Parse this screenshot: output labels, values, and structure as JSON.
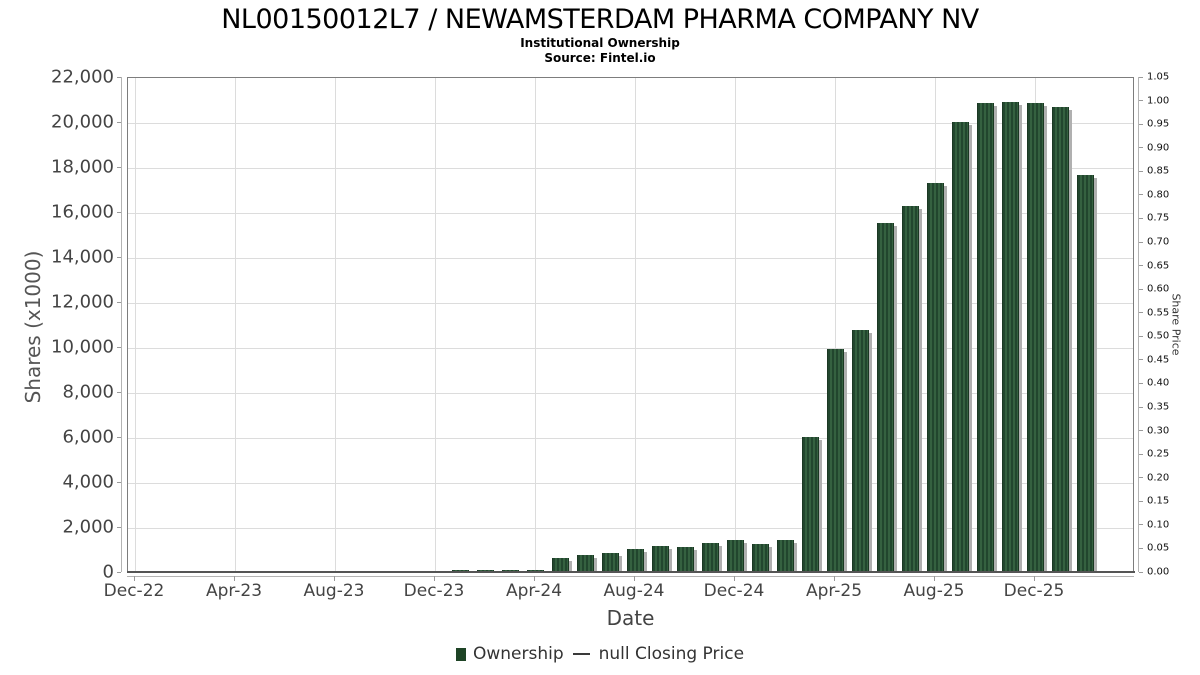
{
  "header": {
    "title": "NL00150012L7 / NEWAMSTERDAM PHARMA COMPANY NV",
    "subtitle": "Institutional Ownership",
    "source": "Source: Fintel.io"
  },
  "chart_data": {
    "type": "bar",
    "title": "NL00150012L7 / NEWAMSTERDAM PHARMA COMPANY NV",
    "subtitle": "Institutional Ownership",
    "source": "Source: Fintel.io",
    "xlabel": "Date",
    "ylabel_left": "Shares (x1000)",
    "ylabel_right": "Share Price",
    "values_unit": "thousands of shares",
    "ylim_left": [
      0,
      22000
    ],
    "ylim_right": [
      0,
      1.05
    ],
    "grid": true,
    "legend_position": "bottom",
    "categories": [
      "Dec-22",
      "Jan-23",
      "Feb-23",
      "Mar-23",
      "Apr-23",
      "May-23",
      "Jun-23",
      "Jul-23",
      "Aug-23",
      "Sep-23",
      "Oct-23",
      "Nov-23",
      "Dec-23",
      "Jan-24",
      "Feb-24",
      "Mar-24",
      "Apr-24",
      "May-24",
      "Jun-24",
      "Jul-24",
      "Aug-24",
      "Sep-24",
      "Oct-24",
      "Nov-24",
      "Dec-24",
      "Jan-25",
      "Feb-25",
      "Mar-25",
      "Apr-25",
      "May-25",
      "Jun-25",
      "Jul-25",
      "Aug-25",
      "Sep-25",
      "Oct-25",
      "Nov-25",
      "Dec-25",
      "Jan-26",
      "Feb-26"
    ],
    "series": [
      {
        "name": "Ownership",
        "values": [
          0,
          0,
          20,
          25,
          30,
          35,
          40,
          45,
          55,
          60,
          70,
          80,
          110,
          115,
          120,
          130,
          140,
          660,
          810,
          900,
          1060,
          1190,
          1170,
          1340,
          1450,
          1310,
          1480,
          6060,
          9950,
          10800,
          15550,
          16300,
          17320,
          20030,
          20900,
          20950,
          20900,
          20720,
          17700
        ]
      }
    ],
    "price_series": {
      "name": "null Closing Price",
      "values": []
    },
    "left_tick_values": [
      0,
      2000,
      4000,
      6000,
      8000,
      10000,
      12000,
      14000,
      16000,
      18000,
      20000,
      22000
    ],
    "left_tick_labels": [
      "0",
      "2,000",
      "4,000",
      "6,000",
      "8,000",
      "10,000",
      "12,000",
      "14,000",
      "16,000",
      "18,000",
      "20,000",
      "22,000"
    ],
    "right_tick_labels": [
      "0.00",
      "0.05",
      "0.10",
      "0.15",
      "0.20",
      "0.25",
      "0.30",
      "0.35",
      "0.40",
      "0.45",
      "0.50",
      "0.55",
      "0.60",
      "0.65",
      "0.70",
      "0.75",
      "0.80",
      "0.85",
      "0.90",
      "0.95",
      "1.00",
      "1.05"
    ],
    "x_tick_labels": [
      "Dec-22",
      "Apr-23",
      "Aug-23",
      "Dec-23",
      "Apr-24",
      "Aug-24",
      "Dec-24",
      "Apr-25",
      "Aug-25",
      "Dec-25"
    ],
    "x_tick_every": 4,
    "bar_color": "#2c5234",
    "shadow_color": "#b0b0b0",
    "gridline_color": "#dcdcdc"
  },
  "legend": {
    "ownership_label": "Ownership",
    "price_label": "null Closing Price"
  }
}
